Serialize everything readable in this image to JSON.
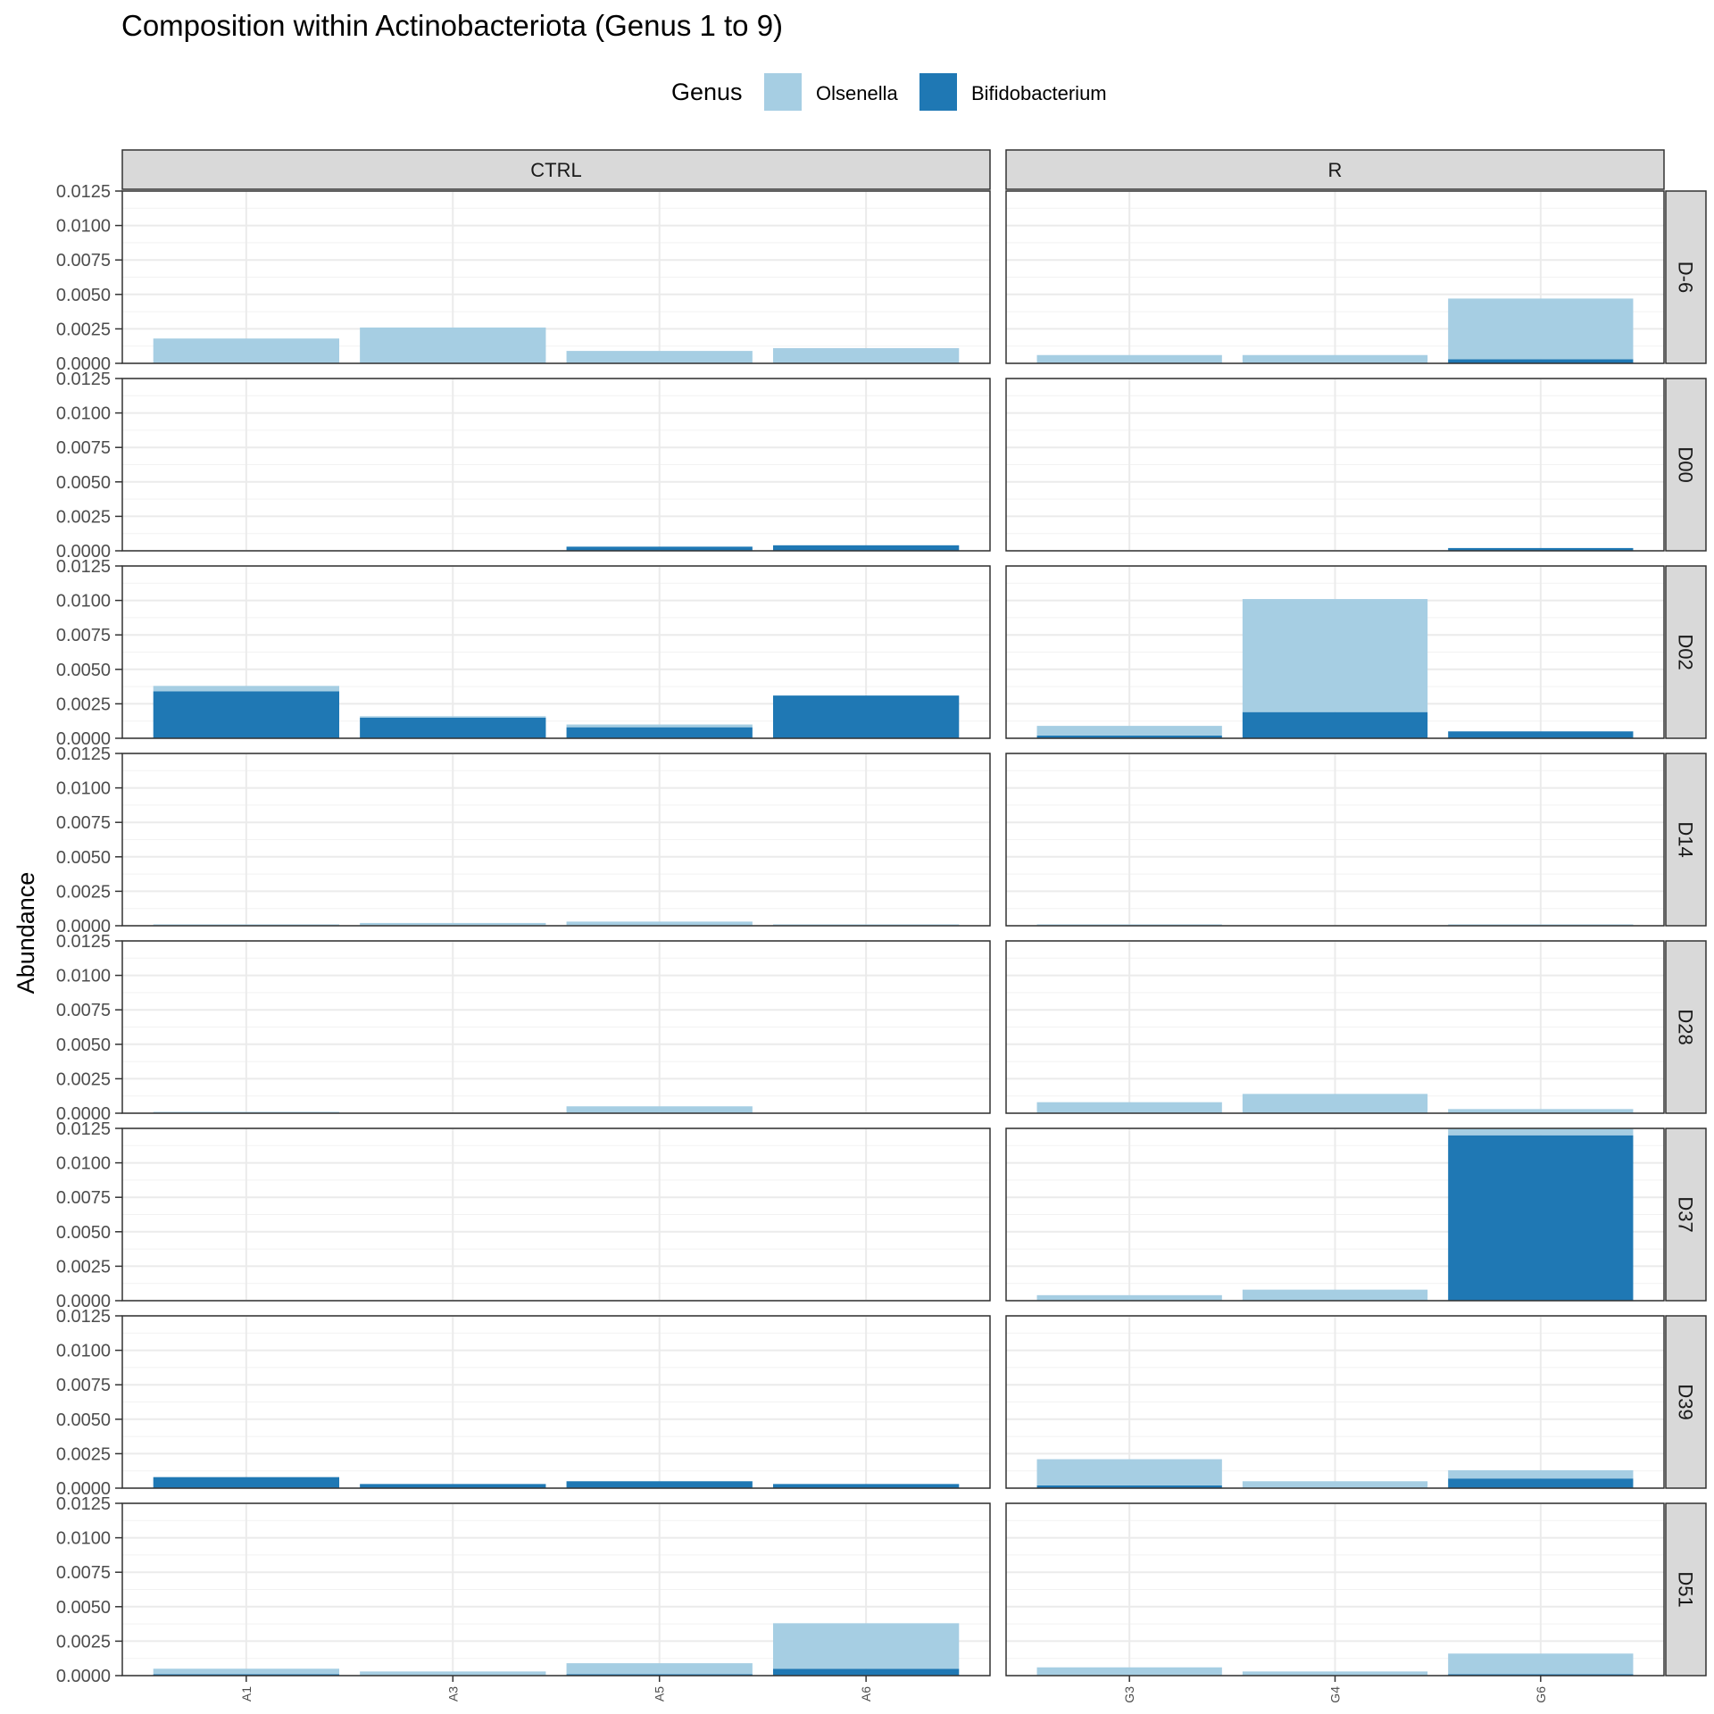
{
  "chart_data": {
    "type": "bar",
    "stacked": true,
    "title": "Composition within Actinobacteriota (Genus 1 to 9)",
    "ylabel": "Abundance",
    "xlabel": "",
    "ylim": [
      0,
      0.0125
    ],
    "yticks": [
      "0.0000",
      "0.0025",
      "0.0050",
      "0.0075",
      "0.0100",
      "0.0125"
    ],
    "grid": true,
    "legend": {
      "title": "Genus",
      "placement": "top",
      "entries": [
        {
          "name": "Olsenella",
          "color": "#a6cee3"
        },
        {
          "name": "Bifidobacterium",
          "color": "#1f78b4"
        }
      ]
    },
    "facet_columns": [
      {
        "label": "CTRL",
        "categories": [
          "A1",
          "A3",
          "A5",
          "A6"
        ]
      },
      {
        "label": "R",
        "categories": [
          "G3",
          "G4",
          "G6"
        ]
      }
    ],
    "facet_rows": [
      {
        "label": "D-6",
        "CTRL": {
          "Bifidobacterium": [
            0,
            0,
            0,
            0
          ],
          "Olsenella": [
            0.0018,
            0.0026,
            0.0009,
            0.0011
          ]
        },
        "R": {
          "Bifidobacterium": [
            0,
            0,
            0.0003
          ],
          "Olsenella": [
            0.0006,
            0.0006,
            0.0044
          ]
        }
      },
      {
        "label": "D00",
        "CTRL": {
          "Bifidobacterium": [
            0,
            0,
            0.0003,
            0.0004
          ],
          "Olsenella": [
            0,
            0,
            0,
            0
          ]
        },
        "R": {
          "Bifidobacterium": [
            0,
            0,
            0.0002
          ],
          "Olsenella": [
            0,
            0,
            0
          ]
        }
      },
      {
        "label": "D02",
        "CTRL": {
          "Bifidobacterium": [
            0.0034,
            0.0015,
            0.0008,
            0.0031
          ],
          "Olsenella": [
            0.0004,
            0.0001,
            0.0002,
            0
          ]
        },
        "R": {
          "Bifidobacterium": [
            0.0002,
            0.0019,
            0.0005
          ],
          "Olsenella": [
            0.0007,
            0.0082,
            0
          ]
        }
      },
      {
        "label": "D14",
        "CTRL": {
          "Bifidobacterium": [
            0,
            0,
            0,
            0
          ],
          "Olsenella": [
            0.0001,
            0.0002,
            0.0003,
            0.0001
          ]
        },
        "R": {
          "Bifidobacterium": [
            0,
            0,
            0
          ],
          "Olsenella": [
            0.0001,
            0,
            0.0001
          ]
        }
      },
      {
        "label": "D28",
        "CTRL": {
          "Bifidobacterium": [
            0,
            0,
            0,
            0
          ],
          "Olsenella": [
            0.0001,
            0,
            0.0005,
            0
          ]
        },
        "R": {
          "Bifidobacterium": [
            0,
            0,
            0
          ],
          "Olsenella": [
            0.0008,
            0.0014,
            0.0003
          ]
        }
      },
      {
        "label": "D37",
        "CTRL": {
          "Bifidobacterium": [
            0,
            0,
            0,
            0
          ],
          "Olsenella": [
            0,
            0,
            0,
            0
          ]
        },
        "R": {
          "Bifidobacterium": [
            0,
            0,
            0.012
          ],
          "Olsenella": [
            0.0004,
            0.0008,
            0.0006
          ]
        }
      },
      {
        "label": "D39",
        "CTRL": {
          "Bifidobacterium": [
            0.0008,
            0.0003,
            0.0005,
            0.0003
          ],
          "Olsenella": [
            0,
            0,
            0,
            0
          ]
        },
        "R": {
          "Bifidobacterium": [
            0.0002,
            0,
            0.0007
          ],
          "Olsenella": [
            0.0019,
            0.0005,
            0.0006
          ]
        }
      },
      {
        "label": "D51",
        "CTRL": {
          "Bifidobacterium": [
            0.0001,
            0,
            0.0001,
            0.0005
          ],
          "Olsenella": [
            0.0004,
            0.0003,
            0.0008,
            0.0033
          ]
        },
        "R": {
          "Bifidobacterium": [
            0,
            0,
            0.0001
          ],
          "Olsenella": [
            0.0006,
            0.0003,
            0.0015
          ]
        }
      }
    ]
  }
}
